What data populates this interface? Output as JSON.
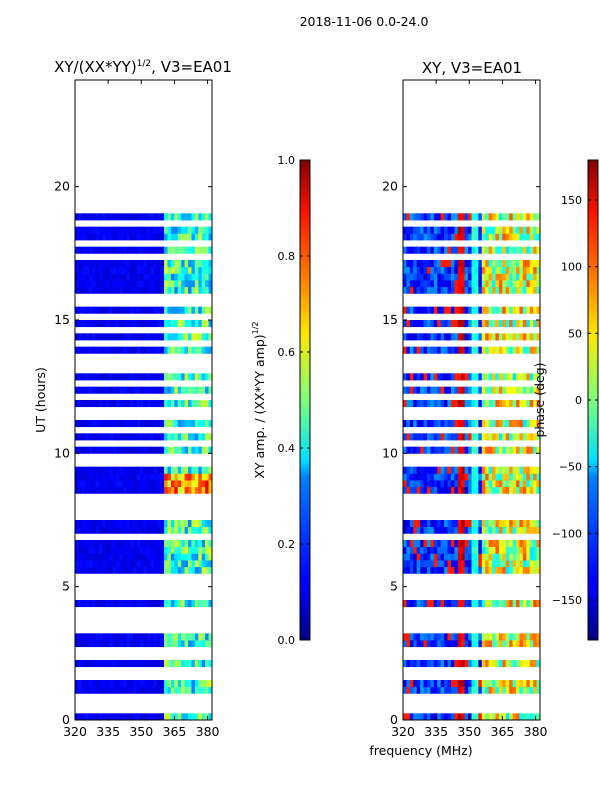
{
  "figure": {
    "suptitle": "2018-11-06 0.0-24.0",
    "shared_xlabel": "frequency (MHz)"
  },
  "chart_data": [
    {
      "type": "heatmap",
      "title_main": "XY/(XX*YY)",
      "title_sup": "1/2",
      "title_tail": ", V3=EA01",
      "xlabel": "",
      "ylabel": "UT (hours)",
      "xlim": [
        320,
        382
      ],
      "ylim": [
        0,
        24
      ],
      "x_ticks": [
        320,
        335,
        350,
        365,
        380
      ],
      "y_ticks": [
        0,
        5,
        10,
        15,
        20
      ],
      "data_coverage_hours": [
        0,
        18.9
      ],
      "band_edge_mhz": 361,
      "colorbar": {
        "label_main": "XY amp. / (XX*YY amp)",
        "label_sup": "1/2",
        "range": [
          0.0,
          1.0
        ],
        "ticks": [
          "0.0",
          "0.2",
          "0.4",
          "0.6",
          "0.8",
          "1.0"
        ],
        "tick_values": [
          0.0,
          0.2,
          0.4,
          0.6,
          0.8,
          1.0
        ],
        "colormap": "jet"
      },
      "flagged_time_bands_hours": [
        0.25,
        0.45,
        0.65,
        1.55,
        1.75,
        2.2,
        2.5,
        2.6,
        2.9,
        3.1,
        3.3,
        3.5,
        3.7,
        3.9,
        4.1,
        4.4,
        4.6,
        4.8,
        5.05,
        5.3,
        6.8,
        7.4,
        7.8,
        7.95,
        8.2,
        9.5,
        9.8,
        10.3,
        10.8,
        11.3,
        11.6,
        12.0,
        12.5,
        13.0,
        13.3,
        13.6,
        14.0,
        14.4,
        14.9,
        15.4,
        15.8,
        16.4,
        16.9,
        17.2,
        17.4,
        17.7,
        18.1,
        18.5
      ]
    },
    {
      "type": "heatmap",
      "title": "XY, V3=EA01",
      "xlabel": "frequency (MHz)",
      "ylabel": "",
      "xlim": [
        320,
        382
      ],
      "ylim": [
        0,
        24
      ],
      "x_ticks": [
        320,
        335,
        350,
        365,
        380
      ],
      "y_ticks": [
        0,
        5,
        10,
        15,
        20
      ],
      "data_coverage_hours": [
        0,
        18.9
      ],
      "stripe_centers_mhz": [
        347,
        353
      ],
      "colorbar": {
        "label": "phase (deg)",
        "range": [
          -180,
          180
        ],
        "ticks": [
          "−150",
          "−100",
          "−50",
          "0",
          "50",
          "100",
          "150"
        ],
        "tick_values": [
          -150,
          -100,
          -50,
          0,
          50,
          100,
          150
        ],
        "colormap": "jet"
      },
      "flagged_time_bands_hours": [
        0.25,
        0.45,
        0.65,
        1.55,
        1.75,
        2.2,
        2.5,
        2.6,
        2.9,
        3.1,
        3.3,
        3.5,
        3.7,
        3.9,
        4.1,
        4.4,
        4.6,
        4.8,
        5.05,
        5.3,
        6.8,
        7.4,
        7.8,
        7.95,
        8.2,
        9.5,
        9.8,
        10.3,
        10.8,
        11.3,
        11.6,
        12.0,
        12.5,
        13.0,
        13.3,
        13.6,
        14.0,
        14.4,
        14.9,
        15.4,
        15.8,
        16.4,
        16.9,
        17.2,
        17.4,
        17.7,
        18.1,
        18.5
      ]
    }
  ]
}
